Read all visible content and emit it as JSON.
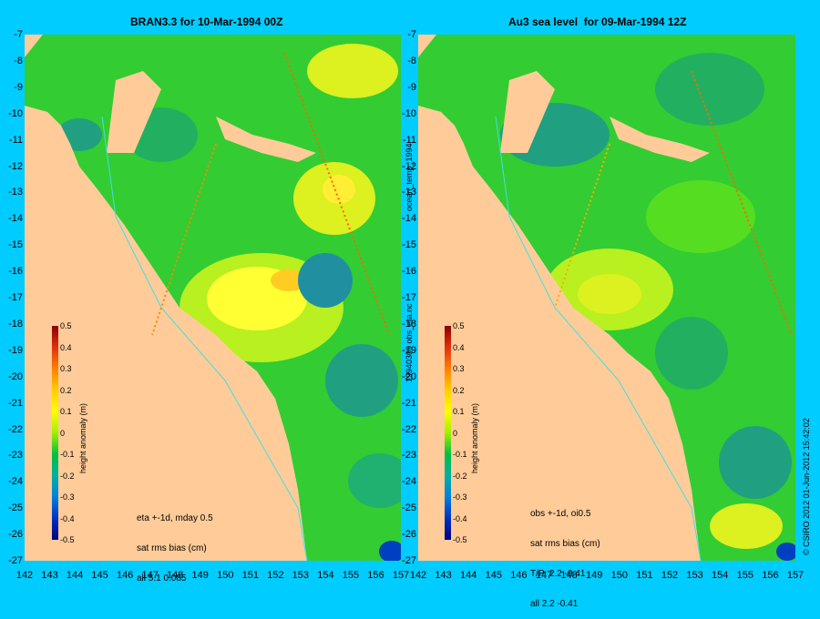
{
  "panels": [
    {
      "title": "BRAN3.3 for 10-Mar-1994 00Z",
      "notes": [
        "eta +-1d, mday 0.5",
        "sat rms bias (cm)",
        "all 5.1 0.085"
      ]
    },
    {
      "title": "Au3 sea level  for 09-Mar-1994 12Z",
      "notes": [
        "obs +-1d, oi0.5",
        "sat rms bias (cm)",
        "T/P  2.2 -0.41",
        "all 2.2 -0.41"
      ]
    }
  ],
  "lat_ticks": [
    "-7",
    "-8",
    "-9",
    "-10",
    "-11",
    "-12",
    "-13",
    "-14",
    "-15",
    "-16",
    "-17",
    "-18",
    "-19",
    "-20",
    "-21",
    "-22",
    "-23",
    "-24",
    "-25",
    "-26",
    "-27"
  ],
  "lon_ticks": [
    "142",
    "143",
    "144",
    "145",
    "146",
    "147",
    "148",
    "149",
    "150",
    "151",
    "152",
    "153",
    "154",
    "155",
    "156",
    "157"
  ],
  "colorbar": {
    "label": "height anomaly (m)",
    "ticks": [
      "0.5",
      "0.4",
      "0.3",
      "0.2",
      "0.1",
      "0",
      "-0.1",
      "-0.2",
      "-0.3",
      "-0.4",
      "-0.5"
    ],
    "colors": [
      "#8b0000",
      "#e03010",
      "#ff8000",
      "#ffcc00",
      "#ffff00",
      "#a0f000",
      "#00c040",
      "#00b0a0",
      "#0080e0",
      "#0030c0",
      "#000080"
    ]
  },
  "center_labels": [
    "ocean_temp_1994",
    "19940309 obs_eta.nc"
  ],
  "credit": "© CSIRO 2012  01-Jun-2012 15:42:02",
  "colors": {
    "background": "#00ccff",
    "land": "#ffcc99",
    "coast": "#40e0e0"
  }
}
